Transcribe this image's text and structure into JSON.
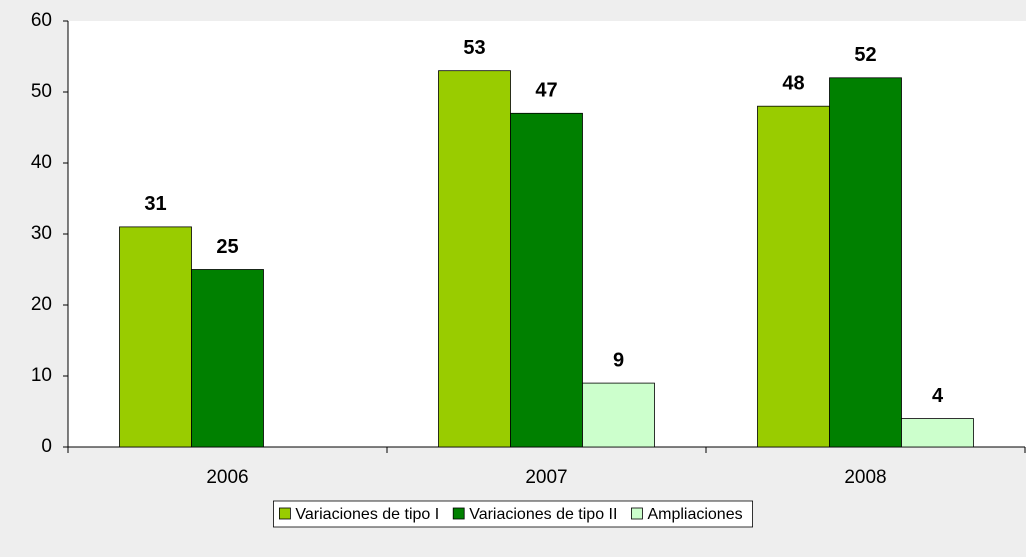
{
  "chart_data": {
    "type": "bar",
    "categories": [
      "2006",
      "2007",
      "2008"
    ],
    "series": [
      {
        "name": "Variaciones de tipo I",
        "color": "#99cc00",
        "values": [
          31,
          53,
          48
        ]
      },
      {
        "name": "Variaciones de tipo II",
        "color": "#008000",
        "values": [
          25,
          47,
          52
        ]
      },
      {
        "name": "Ampliaciones",
        "color": "#ccffcc",
        "values": [
          null,
          9,
          4
        ]
      }
    ],
    "ylim": [
      0,
      60
    ],
    "yticks": [
      0,
      10,
      20,
      30,
      40,
      50,
      60
    ],
    "grid": false,
    "legend": "bottom"
  }
}
